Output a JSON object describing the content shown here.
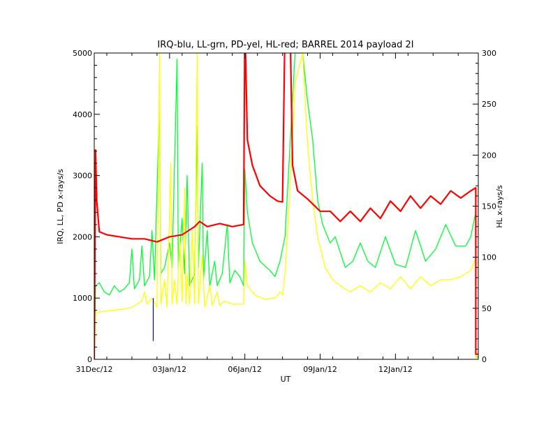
{
  "chart_data": {
    "type": "line",
    "title": "IRQ-blu, LL-grn, PD-yel, HL-red; BARREL 2014 payload 2I",
    "xlabel": "UT",
    "ylabel_left": "IRQ, LL, PD x-rays/s",
    "ylabel_right": "HL x-rays/s",
    "xlim": [
      0,
      15.3
    ],
    "ylim_left": [
      0,
      5000
    ],
    "ylim_right": [
      0,
      300
    ],
    "x_ticks": [
      {
        "x": 0,
        "label": "31Dec/12"
      },
      {
        "x": 3,
        "label": "03Jan/12"
      },
      {
        "x": 6,
        "label": "06Jan/12"
      },
      {
        "x": 9,
        "label": "09Jan/12"
      },
      {
        "x": 12,
        "label": "12Jan/12"
      }
    ],
    "y_ticks_left": [
      0,
      1000,
      2000,
      3000,
      4000,
      5000
    ],
    "y_ticks_right": [
      0,
      50,
      100,
      150,
      200,
      250,
      300
    ],
    "colors": {
      "IRQ": "#0000ff",
      "LL": "#00ff33",
      "PD": "#ffff00",
      "HL": "#ff0000"
    },
    "series": [
      {
        "key": "HL",
        "axis": "right",
        "points": [
          [
            0,
            0
          ],
          [
            0.05,
            205
          ],
          [
            0.1,
            155
          ],
          [
            0.2,
            125
          ],
          [
            0.5,
            122
          ],
          [
            1,
            120
          ],
          [
            1.5,
            118
          ],
          [
            2,
            118
          ],
          [
            2.5,
            115
          ],
          [
            3,
            120
          ],
          [
            3.5,
            122
          ],
          [
            4,
            130
          ],
          [
            4.2,
            135
          ],
          [
            4.5,
            130
          ],
          [
            5,
            133
          ],
          [
            5.5,
            130
          ],
          [
            5.95,
            132
          ],
          [
            6,
            330
          ],
          [
            6.1,
            215
          ],
          [
            6.3,
            190
          ],
          [
            6.6,
            170
          ],
          [
            7,
            160
          ],
          [
            7.3,
            155
          ],
          [
            7.5,
            154
          ],
          [
            7.6,
            330
          ],
          [
            7.8,
            330
          ],
          [
            7.9,
            190
          ],
          [
            8.1,
            165
          ],
          [
            8.5,
            157
          ],
          [
            9,
            145
          ],
          [
            9.4,
            145
          ],
          [
            9.8,
            135
          ],
          [
            10.2,
            145
          ],
          [
            10.6,
            135
          ],
          [
            11,
            148
          ],
          [
            11.4,
            138
          ],
          [
            11.8,
            155
          ],
          [
            12.2,
            145
          ],
          [
            12.6,
            160
          ],
          [
            13,
            148
          ],
          [
            13.4,
            160
          ],
          [
            13.8,
            152
          ],
          [
            14.2,
            165
          ],
          [
            14.6,
            158
          ],
          [
            15,
            165
          ],
          [
            15.2,
            168
          ],
          [
            15.2,
            5
          ],
          [
            15.3,
            5
          ]
        ]
      },
      {
        "key": "LL",
        "axis": "left",
        "points": [
          [
            0,
            0
          ],
          [
            0.05,
            1200
          ],
          [
            0.2,
            1250
          ],
          [
            0.4,
            1100
          ],
          [
            0.6,
            1050
          ],
          [
            0.8,
            1200
          ],
          [
            1,
            1100
          ],
          [
            1.2,
            1150
          ],
          [
            1.4,
            1250
          ],
          [
            1.5,
            1800
          ],
          [
            1.6,
            1150
          ],
          [
            1.8,
            1300
          ],
          [
            1.9,
            1850
          ],
          [
            2,
            1200
          ],
          [
            2.2,
            1350
          ],
          [
            2.3,
            2100
          ],
          [
            2.4,
            1300
          ],
          [
            2.6,
            4200
          ],
          [
            2.65,
            1400
          ],
          [
            2.8,
            1500
          ],
          [
            3,
            1900
          ],
          [
            3.1,
            1500
          ],
          [
            3.3,
            4900
          ],
          [
            3.35,
            1500
          ],
          [
            3.5,
            2300
          ],
          [
            3.6,
            1400
          ],
          [
            3.7,
            3000
          ],
          [
            3.8,
            1200
          ],
          [
            4,
            1400
          ],
          [
            4.1,
            3800
          ],
          [
            4.15,
            1500
          ],
          [
            4.3,
            3200
          ],
          [
            4.35,
            1300
          ],
          [
            4.5,
            2100
          ],
          [
            4.6,
            1200
          ],
          [
            4.8,
            1600
          ],
          [
            4.9,
            1200
          ],
          [
            5.1,
            1400
          ],
          [
            5.3,
            2200
          ],
          [
            5.4,
            1250
          ],
          [
            5.6,
            1450
          ],
          [
            5.8,
            1350
          ],
          [
            5.95,
            1200
          ],
          [
            6,
            3100
          ],
          [
            6.1,
            2400
          ],
          [
            6.3,
            1900
          ],
          [
            6.6,
            1600
          ],
          [
            7,
            1450
          ],
          [
            7.2,
            1350
          ],
          [
            7.4,
            1600
          ],
          [
            7.6,
            2000
          ],
          [
            7.8,
            3500
          ],
          [
            8,
            5000
          ],
          [
            8.3,
            5000
          ],
          [
            8.5,
            4200
          ],
          [
            8.7,
            3600
          ],
          [
            8.9,
            2600
          ],
          [
            9.1,
            2200
          ],
          [
            9.4,
            1900
          ],
          [
            9.6,
            2000
          ],
          [
            9.8,
            1750
          ],
          [
            10,
            1500
          ],
          [
            10.3,
            1600
          ],
          [
            10.6,
            1900
          ],
          [
            10.9,
            1600
          ],
          [
            11.2,
            1500
          ],
          [
            11.6,
            2000
          ],
          [
            12,
            1550
          ],
          [
            12.4,
            1500
          ],
          [
            12.8,
            2100
          ],
          [
            13.2,
            1600
          ],
          [
            13.6,
            1800
          ],
          [
            14,
            2200
          ],
          [
            14.4,
            1850
          ],
          [
            14.8,
            1850
          ],
          [
            15,
            2000
          ],
          [
            15.2,
            2400
          ],
          [
            15.2,
            40
          ],
          [
            15.3,
            40
          ]
        ]
      },
      {
        "key": "PD",
        "axis": "left",
        "points": [
          [
            0,
            0
          ],
          [
            0.05,
            750
          ],
          [
            0.3,
            780
          ],
          [
            0.7,
            800
          ],
          [
            1.2,
            820
          ],
          [
            1.5,
            850
          ],
          [
            1.7,
            900
          ],
          [
            1.9,
            950
          ],
          [
            2,
            1100
          ],
          [
            2.1,
            900
          ],
          [
            2.3,
            1000
          ],
          [
            2.5,
            850
          ],
          [
            2.6,
            5000
          ],
          [
            2.65,
            900
          ],
          [
            2.8,
            1300
          ],
          [
            2.9,
            850
          ],
          [
            3.05,
            3200
          ],
          [
            3.1,
            900
          ],
          [
            3.2,
            1300
          ],
          [
            3.3,
            900
          ],
          [
            3.4,
            2000
          ],
          [
            3.5,
            950
          ],
          [
            3.6,
            2800
          ],
          [
            3.65,
            900
          ],
          [
            3.7,
            1400
          ],
          [
            3.8,
            900
          ],
          [
            3.9,
            2100
          ],
          [
            4,
            900
          ],
          [
            4.1,
            5000
          ],
          [
            4.15,
            900
          ],
          [
            4.3,
            1700
          ],
          [
            4.4,
            850
          ],
          [
            4.6,
            1200
          ],
          [
            4.7,
            880
          ],
          [
            4.9,
            1100
          ],
          [
            5,
            880
          ],
          [
            5.2,
            950
          ],
          [
            5.5,
            900
          ],
          [
            5.95,
            900
          ],
          [
            6,
            1600
          ],
          [
            6.1,
            1200
          ],
          [
            6.4,
            1050
          ],
          [
            6.8,
            980
          ],
          [
            7.2,
            1000
          ],
          [
            7.4,
            1100
          ],
          [
            7.5,
            1050
          ],
          [
            7.6,
            1400
          ],
          [
            7.8,
            2800
          ],
          [
            8,
            4500
          ],
          [
            8.3,
            5000
          ],
          [
            8.5,
            3500
          ],
          [
            8.7,
            2600
          ],
          [
            8.9,
            2000
          ],
          [
            9.2,
            1500
          ],
          [
            9.5,
            1300
          ],
          [
            9.8,
            1200
          ],
          [
            10.2,
            1100
          ],
          [
            10.6,
            1200
          ],
          [
            11,
            1100
          ],
          [
            11.4,
            1250
          ],
          [
            11.8,
            1150
          ],
          [
            12.2,
            1350
          ],
          [
            12.6,
            1150
          ],
          [
            13,
            1350
          ],
          [
            13.4,
            1200
          ],
          [
            13.8,
            1300
          ],
          [
            14.2,
            1300
          ],
          [
            14.6,
            1350
          ],
          [
            15,
            1450
          ],
          [
            15.2,
            1650
          ],
          [
            15.2,
            30
          ],
          [
            15.3,
            30
          ]
        ]
      },
      {
        "key": "IRQ",
        "axis": "left",
        "points": [
          [
            2.35,
            300
          ],
          [
            2.35,
            1000
          ]
        ]
      }
    ]
  }
}
